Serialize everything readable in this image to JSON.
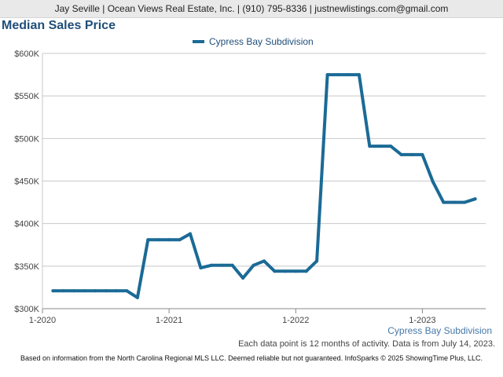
{
  "header": {
    "contact": "Jay Seville | Ocean Views Real Estate, Inc. | (910) 795-8336 | justnewlistings.com@gmail.com"
  },
  "colors": {
    "line": "#1b6a96",
    "title": "#1f4e79",
    "grid": "#c8c8c8"
  },
  "chart_data": {
    "type": "line",
    "title": "Median Sales Price",
    "xlabel": "",
    "ylabel": "",
    "ylim": [
      300000,
      600000
    ],
    "xlim": [
      "2020-01",
      "2023-07"
    ],
    "y_ticks": [
      {
        "value": 300000,
        "label": "$300K"
      },
      {
        "value": 350000,
        "label": "$350K"
      },
      {
        "value": 400000,
        "label": "$400K"
      },
      {
        "value": 450000,
        "label": "$450K"
      },
      {
        "value": 500000,
        "label": "$500K"
      },
      {
        "value": 550000,
        "label": "$550K"
      },
      {
        "value": 600000,
        "label": "$600K"
      }
    ],
    "x_ticks": [
      {
        "value": "2020-01",
        "label": "1-2020"
      },
      {
        "value": "2021-01",
        "label": "1-2021"
      },
      {
        "value": "2022-01",
        "label": "1-2022"
      },
      {
        "value": "2023-01",
        "label": "1-2023"
      }
    ],
    "grid": true,
    "legend_position": "top",
    "series": [
      {
        "name": "Cypress Bay Subdivision",
        "x": [
          "2020-02",
          "2020-03",
          "2020-04",
          "2020-05",
          "2020-06",
          "2020-07",
          "2020-08",
          "2020-09",
          "2020-10",
          "2020-11",
          "2020-12",
          "2021-01",
          "2021-02",
          "2021-03",
          "2021-04",
          "2021-05",
          "2021-06",
          "2021-07",
          "2021-08",
          "2021-09",
          "2021-10",
          "2021-11",
          "2021-12",
          "2022-01",
          "2022-02",
          "2022-03",
          "2022-04",
          "2022-05",
          "2022-06",
          "2022-07",
          "2022-08",
          "2022-09",
          "2022-10",
          "2022-11",
          "2022-12",
          "2023-01",
          "2023-02",
          "2023-03",
          "2023-04",
          "2023-05",
          "2023-06"
        ],
        "values": [
          321000,
          321000,
          321000,
          321000,
          321000,
          321000,
          321000,
          321000,
          313000,
          381000,
          381000,
          381000,
          381000,
          388000,
          348000,
          351000,
          351000,
          351000,
          336000,
          351000,
          356000,
          344000,
          344000,
          344000,
          344000,
          356000,
          575000,
          575000,
          575000,
          575000,
          491000,
          491000,
          491000,
          481000,
          481000,
          481000,
          449000,
          425000,
          425000,
          425000,
          429000
        ]
      }
    ],
    "footer_series": "Cypress Bay Subdivision",
    "note": "Each data point is 12 months of activity. Data is from July 14, 2023."
  },
  "disclaimer": "Based on information from the North Carolina Regional MLS LLC. Deemed reliable but not guaranteed. InfoSparks © 2025 ShowingTime Plus, LLC."
}
